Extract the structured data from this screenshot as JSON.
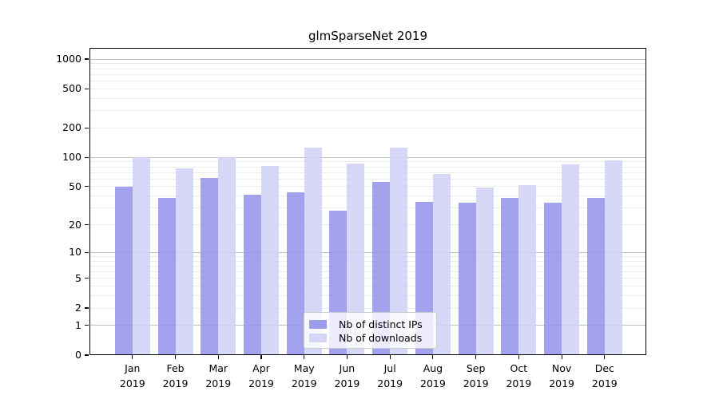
{
  "page": {
    "background": "#ffffff"
  },
  "chart_data": {
    "type": "bar",
    "title": "glmSparseNet 2019",
    "categories": [
      "Jan",
      "Feb",
      "Mar",
      "Apr",
      "May",
      "Jun",
      "Jul",
      "Aug",
      "Sep",
      "Oct",
      "Nov",
      "Dec"
    ],
    "x_tick_second_line": "2019",
    "series": [
      {
        "name": "Nb of distinct IPs",
        "color": "#9292ec",
        "values": [
          50,
          38,
          61,
          41,
          44,
          28,
          56,
          35,
          34,
          38,
          34,
          38
        ]
      },
      {
        "name": "Nb of downloads",
        "color": "#d0d0f6",
        "values": [
          100,
          77,
          100,
          82,
          125,
          86,
          125,
          68,
          49,
          52,
          85,
          94
        ]
      }
    ],
    "y_ticks": [
      0,
      1,
      2,
      5,
      10,
      20,
      50,
      100,
      200,
      500,
      1000
    ],
    "y_scale": "log10(value+1)",
    "ylim": [
      0,
      1300
    ],
    "grid": true,
    "grid_major_ticks": [
      1,
      10,
      100,
      1000
    ],
    "legend_position": "bottom-center",
    "colors": {
      "grid_major": "#c2c2c2",
      "grid_minor": "#ececec",
      "axis": "#000000",
      "text": "#000000",
      "legend_border": "#cccccc",
      "legend_background": "#ffffff"
    }
  }
}
